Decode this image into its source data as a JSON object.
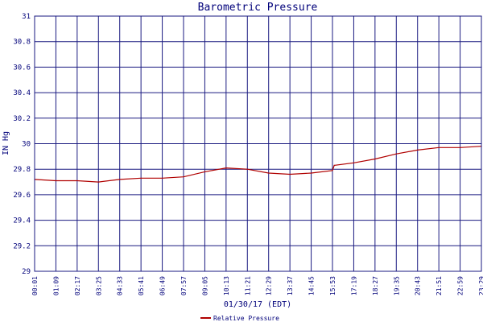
{
  "colors": {
    "grid": "#1a1a80",
    "frame": "#1a1a80",
    "series": "#b00000",
    "text": "#00007a",
    "background": "#ffffff"
  },
  "chart_data": {
    "type": "line",
    "title": "Barometric Pressure",
    "xlabel": "01/30/17 (EDT)",
    "ylabel": "IN Hg",
    "ylim": [
      29,
      31
    ],
    "yticks": [
      "29",
      "29.2",
      "29.4",
      "29.6",
      "29.8",
      "30",
      "30.2",
      "30.4",
      "30.6",
      "30.8",
      "31"
    ],
    "xticks": [
      "00:01",
      "01:09",
      "02:17",
      "03:25",
      "04:33",
      "05:41",
      "06:49",
      "07:57",
      "09:05",
      "10:13",
      "11:21",
      "12:29",
      "13:37",
      "14:45",
      "15:53",
      "17:19",
      "18:27",
      "19:35",
      "20:43",
      "21:51",
      "22:59",
      "23:29"
    ],
    "grid": true,
    "legend_position": "bottom-center",
    "series": [
      {
        "name": "Relative Pressure",
        "x": [
          "00:01",
          "01:09",
          "02:17",
          "03:25",
          "04:33",
          "05:41",
          "06:49",
          "07:57",
          "09:05",
          "10:13",
          "11:21",
          "12:29",
          "13:37",
          "14:45",
          "15:53",
          "16:00",
          "17:19",
          "18:27",
          "19:35",
          "20:43",
          "21:51",
          "22:59",
          "23:29"
        ],
        "values": [
          29.72,
          29.71,
          29.71,
          29.7,
          29.72,
          29.73,
          29.73,
          29.74,
          29.78,
          29.81,
          29.8,
          29.77,
          29.76,
          29.77,
          29.79,
          29.83,
          29.85,
          29.88,
          29.92,
          29.95,
          29.97,
          29.97,
          29.98
        ]
      }
    ]
  }
}
